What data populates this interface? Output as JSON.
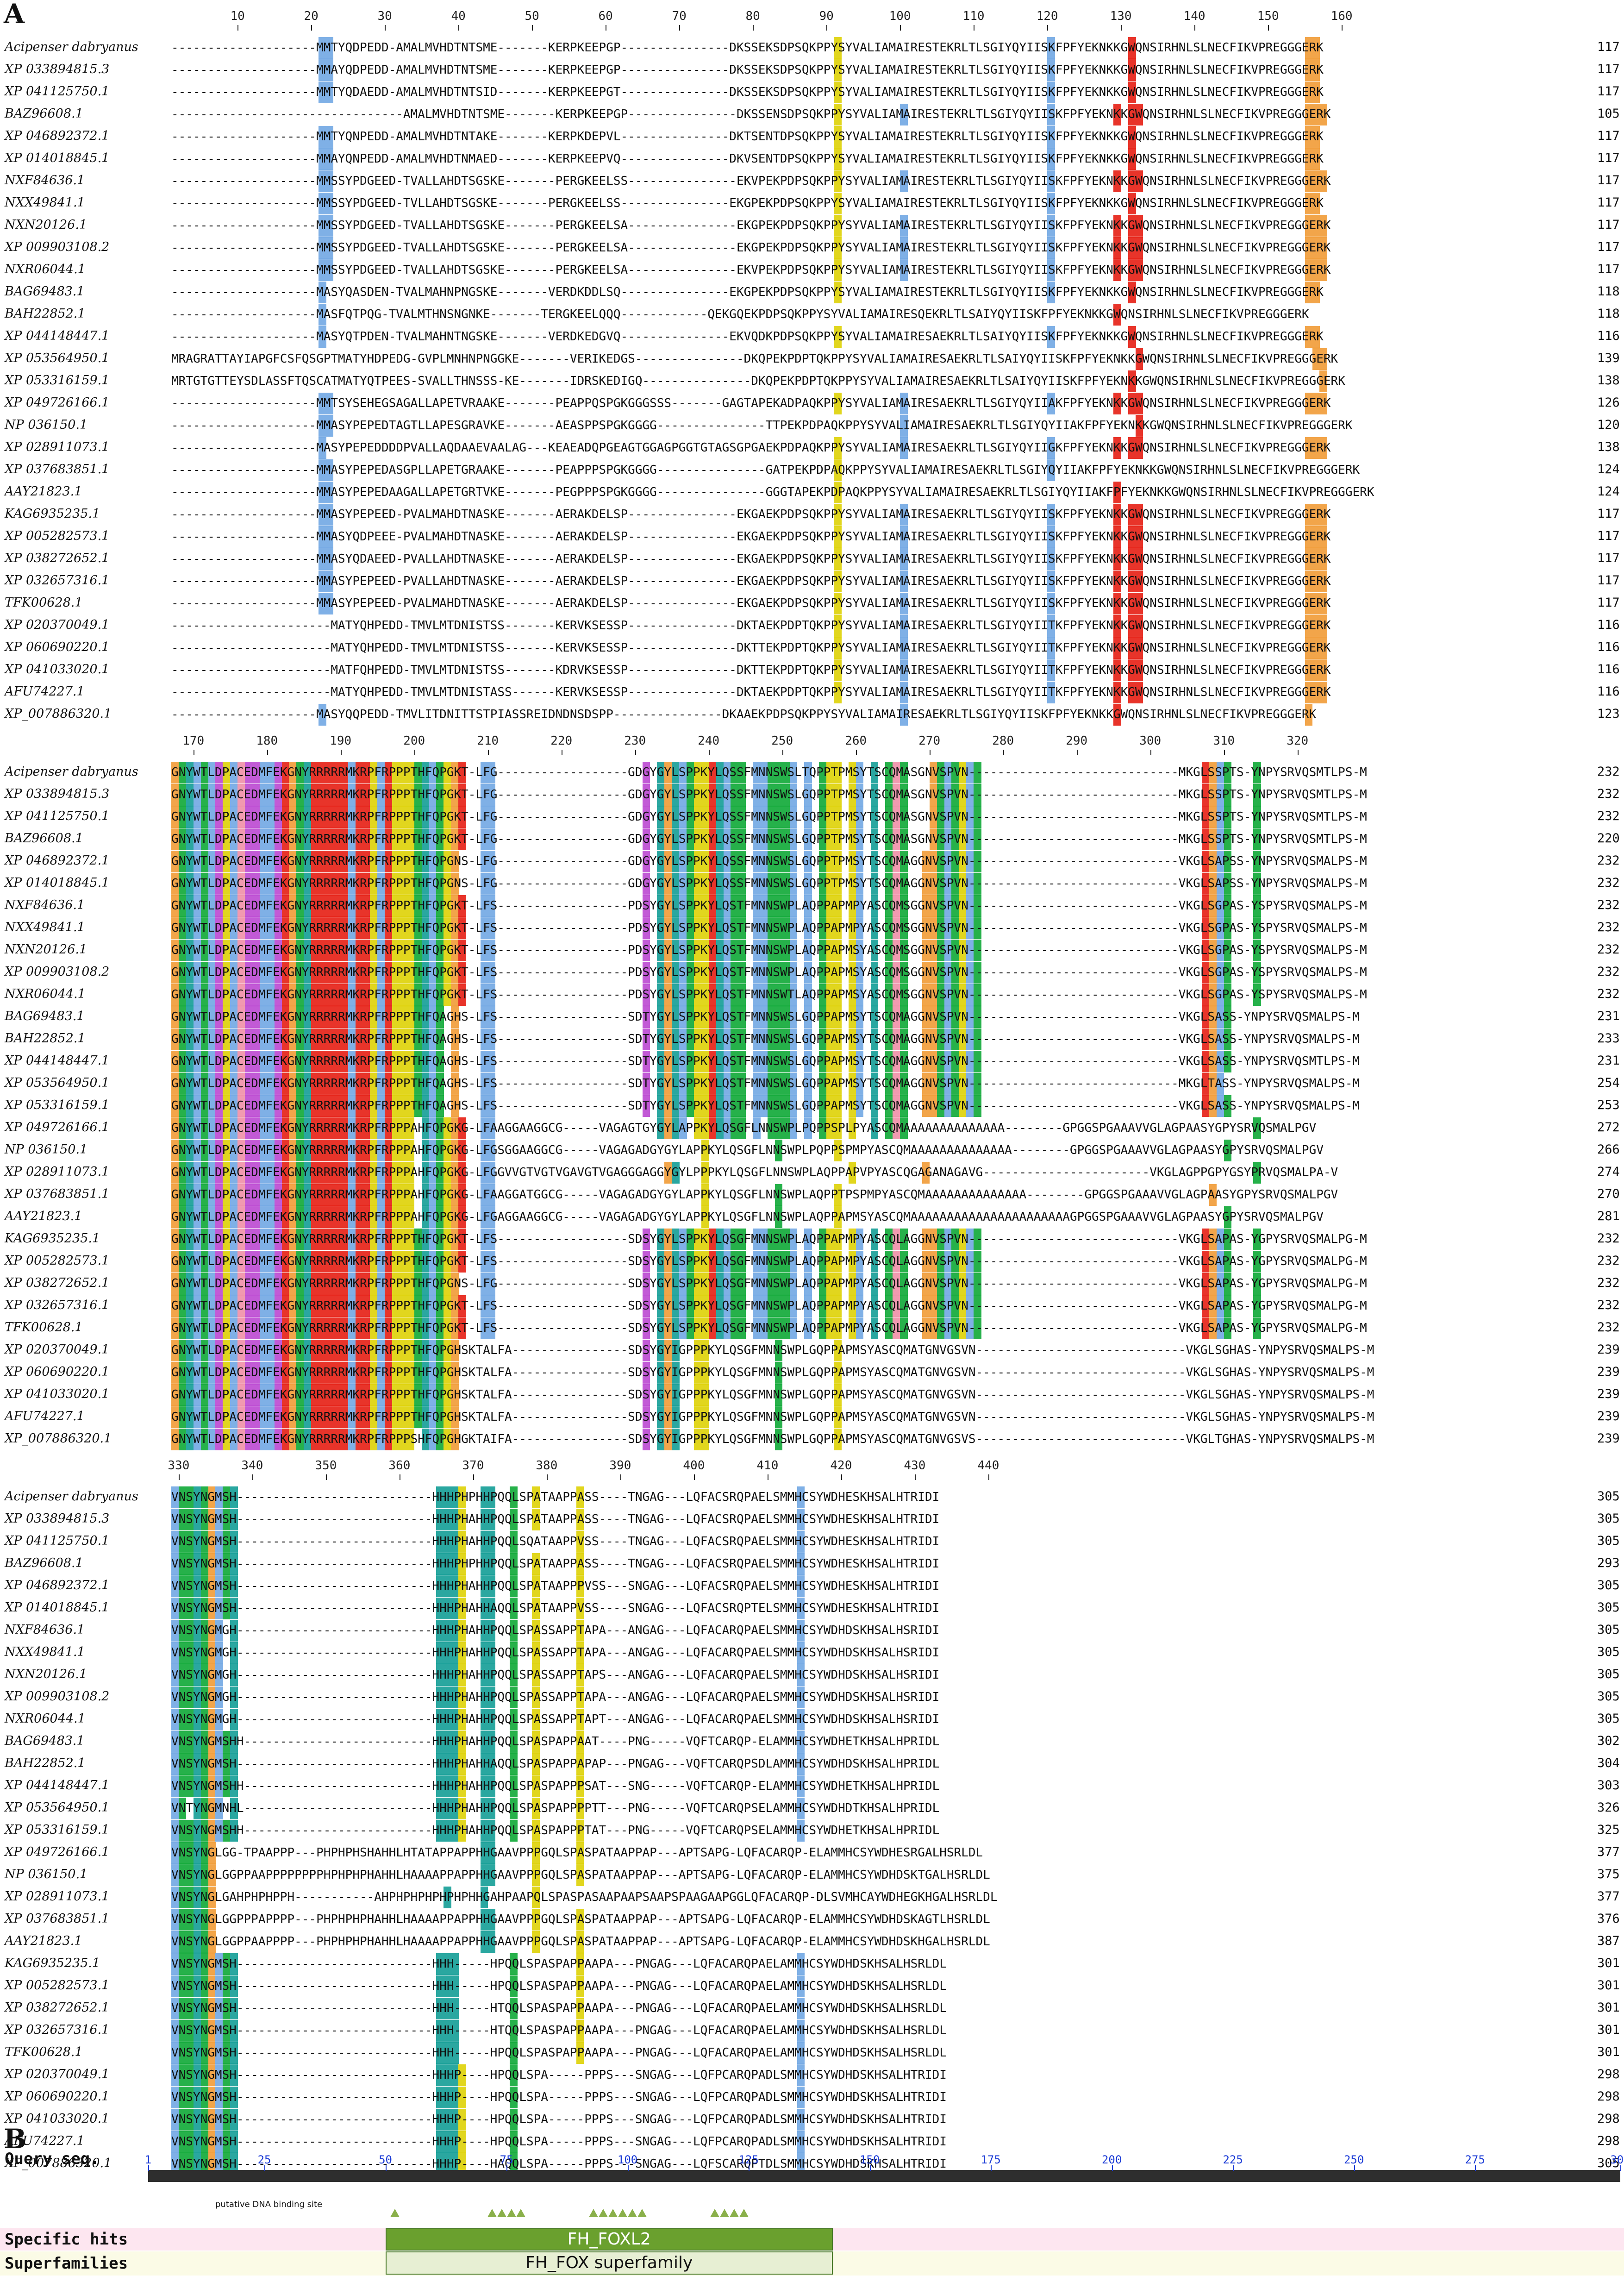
{
  "panel_a_label": "A",
  "panel_b_label": "B",
  "colors": {
    "blue": "#7fb0e6",
    "red": "#e8342a",
    "green": "#26b14a",
    "orange": "#f2a54a",
    "magenta": "#c25ad6",
    "yellow": "#e1d61e",
    "teal": "#2aa7a0",
    "pink": "#f19ab0",
    "lightgreen": "#9bd34c",
    "tan": "#c8a07a"
  },
  "names": [
    "Acipenser dabryanus",
    "XP 033894815.3",
    "XP 041125750.1",
    "BAZ96608.1",
    "XP 046892372.1",
    "XP 014018845.1",
    "NXF84636.1",
    "NXX49841.1",
    "NXN20126.1",
    "XP 009903108.2",
    "NXR06044.1",
    "BAG69483.1",
    "BAH22852.1",
    "XP 044148447.1",
    "XP 053564950.1",
    "XP 053316159.1",
    "XP 049726166.1",
    "NP 036150.1",
    "XP 028911073.1",
    "XP 037683851.1",
    "AAY21823.1",
    "KAG6935235.1",
    "XP 005282573.1",
    "XP 038272652.1",
    "XP 032657316.1",
    "TFK00628.1",
    "XP 020370049.1",
    "XP 060690220.1",
    "XP 041033020.1",
    "AFU74227.1",
    "XP_007886320.1"
  ],
  "block1": {
    "ruler": [
      "10",
      "20",
      "30",
      "40",
      "50",
      "60",
      "70",
      "80",
      "90",
      "100",
      "110",
      "120",
      "130",
      "140",
      "150",
      "160"
    ],
    "ends": [
      "117",
      "117",
      "117",
      "105",
      "117",
      "117",
      "117",
      "117",
      "117",
      "117",
      "117",
      "118",
      "118",
      "116",
      "139",
      "138",
      "126",
      "120",
      "138",
      "124",
      "124",
      "117",
      "117",
      "117",
      "117",
      "117",
      "116",
      "116",
      "116",
      "116",
      "123"
    ],
    "seqs": [
      "--------------------MMTYQDPEDD-AMALMVHDTNTSME-------KERPKEEPGP---------------DKSSEKSDPSQKPPYSYVALIAMAIRESTEKRLTLSGIYQYIISKFPFYEKNKKGWQNSIRHNLSLNECFIKVPREGGGERK",
      "--------------------MMAYQDPEDD-AMALMVHDTNTSME-------KERPKEEPGP---------------DKSSEKSDPSQKPPYSYVALIAMAIRESTEKRLTLSGIYQYIISKFPFYEKNKKGWQNSIRHNLSLNECFIKVPREGGGERK",
      "--------------------MMTYQDAEDD-AMALMVHDTNTSID-------KERPKEEPGT---------------DKSSEKSDPSQKPPYSYVALIAMAIRESTEKRLTLSGIYQYIISKFPFYEKNKKGWQNSIRHNLSLNECFIKVPREGGGERK",
      "--------------------------------AMALMVHDTNTSME-------KERPKEEPGP---------------DKSSENSDPSQKPPYSYVALIAMAIRESTEKRLTLSGIYQYIISKFPFYEKNKKGWQNSIRHNLSLNECFIKVPREGGGERK",
      "--------------------MMTYQNPEDD-AMALMVHDTNTAKE-------KERPKDEPVL---------------DKTSENTDPSQKPPYSYVALIAMAIRESTEKRLTLSGIYQYIISKFPFYEKNKKGWQNSIRHNLSLNECFIKVPREGGGERK",
      "--------------------MMAYQNPEDD-AMALMVHDTNMAED-------KERPKEEPVQ---------------DKVSENTDPSQKPPYSYVALIAMAIRESTEKRLTLSGIYQYIISKFPFYEKNKKGWQNSIRHNLSLNECFIKVPREGGGERK",
      "--------------------MMSSYPDGEED-TVALLAHDTSGSKE-------PERGKEELSS---------------EKVPEKPDPSQKPPYSYVALIAMAIRESTEKRLTLSGIYQYIISKFPFYEKNKKGWQNSIRHNLSLNECFIKVPREGGGERK",
      "--------------------MMSSYPDGEED-TVLLAHDTSGSKE-------PERGKEELSS---------------EKGPEKPDPSQKPPYSYVALIAMAIRESTEKRLTLSGIYQYIISKFPFYEKNKKGWQNSIRHNLSLNECFIKVPREGGGERK",
      "--------------------MMSSYPDGEED-TVALLAHDTSGSKE-------PERGKEELSA---------------EKGPEKPDPSQKPPYSYVALIAMAIRESTEKRLTLSGIYQYIISKFPFYEKNKKGWQNSIRHNLSLNECFIKVPREGGGERK",
      "--------------------MMSSYPDGEED-TVALLAHDTSGSKE-------PERGKEELSA---------------EKGPEKPDPSQKPPYSYVALIAMAIRESTEKRLTLSGIYQYIISKFPFYEKNKKGWQNSIRHNLSLNECFIKVPREGGGERK",
      "--------------------MMSSYPDGEED-TVALLAHDTSGSKE-------PERGKEELSA---------------EKVPEKPDPSQKPPYSYVALIAMAIRESTEKRLTLSGIYQYIISKFPFYEKNKKGWQNSIRHNLSLNECFIKVPREGGGERK",
      "--------------------MASYQASDEN-TVALMAHNPNGSKE-------VERDKDDLSQ---------------EKGPEKPDPSQKPPYSYVALIAMAIRESTEKRLTLSGIYQYIISKFPFYEKNKKGWQNSIRHNLSLNECFIKVPREGGGERK",
      "--------------------MASFQTPQG-TVALMTHNSNGNKE-------TERGKEELQQQ------------QEKGQEKPDPSQKPPYSYVALIAMAIRESQEKRLTLSAIYQYIISKFPFYEKNKKGWQNSIRHNLSLNECFIKVPREGGGERK",
      "--------------------MASYQTPDEN-TVALMAHNTNGSKE-------VERDKEDGVQ---------------EKVQDKPDPSQKPPYSYVALIAMAIRESAEKRLTLSAIYQYIISKFPFYEKNKKGWQNSIRHNLSLNECFIKVPREGGGERK",
      "MRAGRATTAYIAPGFCSFQSGPTMATYHDPEDG-GVPLMNHNPNGGKE-------VERIKEDGS---------------DKQPEKPDPTQKPPYSYVALIAMAIRESAEKRLTLSAIYQYIISKFPFYEKNKKGWQNSIRHNLSLNECFIKVPREGGGERK",
      "MRTGTGTTEYSDLASSFTQSCATMATYQTPEES-SVALLTHNSSS-KE-------IDRSKEDIGQ---------------DKQPEKPDPTQKPPYSYVALIAMAIRESAEKRLTLSAIYQYIISKFPFYEKNKKGWQNSIRHNLSLNECFIKVPREGGGERK",
      "--------------------MMTSYSEHEGSAGALLAPETVRAAKE-------PEAPPQSPGKGGGSSS-------GAGTAPEKADPAQKPPYSYVALIAMAIRESAEKRLTLSGIYQYIIAKFPFYEKNKKGWQNSIRHNLSLNECFIKVPREGGGERK",
      "--------------------MMASYPEPEDTAGTLLAPESGRAVKE-------AEASPPSPGKGGGG---------------TTPEKPDPAQKPPYSYVALIAMAIRESAEKRLTLSGIYQYIIAKFPFYEKNKKGWQNSIRHNLSLNECFIKVPREGGGERK",
      "--------------------MASYPEPEDDDDPVALLAQDAAEVAALAG---KEAEADQPGEAGTGGAGPGGTGTAGSGPGAEKPDPAQKPPYSYVALIAMAIRESAEKRLTLSGIYQYIIGKFPFYEKNKKGWQNSIRHNLSLNECFIKVPREGGGERK",
      "--------------------MMASYPEPEDASGPLLAPETGRAAKE-------PEAPPPSPGKGGGG---------------GATPEKPDPAQKPPYSYVALIAMAIRESAEKRLTLSGIYQYIIAKFPFYEKNKKGWQNSIRHNLSLNECFIKVPREGGGERK",
      "--------------------MMASYPEPEDAAGALLAPETGRTVKE-------PEGPPPSPGKGGGG---------------GGGTAPEKPDPAQKPPYSYVALIAMAIRESAEKRLTLSGIYQYIIAKFPFYEKNKKGWQNSIRHNLSLNECFIKVPREGGGERK",
      "--------------------MMASYPEPEED-PVALMAHDTNASKE-------AERAKDELSP---------------EKGAEKPDPSQKPPYSYVALIAMAIRESAEKRLTLSGIYQYIISKFPFYEKNKKGWQNSIRHNLSLNECFIKVPREGGGERK",
      "--------------------MMASYQDPEEE-PVALMAHDTNASKE-------AERAKDELSP---------------EKGAEKPDPSQKPPYSYVALIAMAIRESAEKRLTLSGIYQYIISKFPFYEKNKKGWQNSIRHNLSLNECFIKVPREGGGERK",
      "--------------------MMASYQDAEED-PVALLAHDTNASKE-------AERAKDELSP---------------EKGAEKPDPSQKPPYSYVALIAMAIRESAEKRLTLSGIYQYIISKFPFYEKNKKGWQNSIRHNLSLNECFIKVPREGGGERK",
      "--------------------MMASYPEPEED-PVALLAHDTNASKE-------AERAKDELSP---------------EKGAEKPDPSQKPPYSYVALIAMAIRESAEKRLTLSGIYQYIISKFPFYEKNKKGWQNSIRHNLSLNECFIKVPREGGGERK",
      "--------------------MMASYPEPEED-PVALMAHDTNASKE-------AERAKDELSP---------------EKGAEKPDPSQKPPYSYVALIAMAIRESAEKRLTLSGIYQYIISKFPFYEKNKKGWQNSIRHNLSLNECFIKVPREGGGERK",
      "----------------------MATYQHPEDD-TMVLMTDNISTSS-------KERVKSESSP---------------DKTAEKPDPTQKPPYSYVALIAMAIRESAEKRLTLSGIYQYIITKFPFYEKNKKGWQNSIRHNLSLNECFIKVPREGGGERK",
      "----------------------MATYQHPEDD-TMVLMTDNISTSS-------KERVKSESSP---------------DKTTEKPDPTQKPPYSYVALIAMAIRESAEKRLTLSGIYQYIITKFPFYEKNKKGWQNSIRHNLSLNECFIKVPREGGGERK",
      "----------------------MATFQHPEDD-TMVLMTDNISTSS-------KDRVKSESSP---------------DKTTEKPDPTQKPPYSYVALIAMAIRESAEKRLTLSGIYQYIITKFPFYEKNKKGWQNSIRHNLSLNECFIKVPREGGGERK",
      "----------------------MATYQHPEDD-TMVLMTDNISTASS------KERVKSESSP---------------DKTAEKPDPTQKPPYSYVALIAMAIRESAEKRLTLSGIYQYIITKFPFYEKNKKGWQNSIRHNLSLNECFIKVPREGGGERK",
      "--------------------MASYQQPEDD-TMVLITDNITTSTPIASSREIDNDNSDSPP---------------DKAAEKPDPSQKPPYSYVALIAMAIRESAEKRLTLSGIYQYIISKFPFYEKNKKGWQNSIRHNLSLNECFIKVPREGGGERK"
    ]
  },
  "block2": {
    "ruler": [
      "170",
      "180",
      "190",
      "200",
      "210",
      "220",
      "230",
      "240",
      "250",
      "260",
      "270",
      "280",
      "290",
      "300",
      "310",
      "320"
    ],
    "ends": [
      "232",
      "232",
      "232",
      "220",
      "232",
      "232",
      "232",
      "232",
      "232",
      "232",
      "232",
      "231",
      "233",
      "231",
      "254",
      "253",
      "272",
      "266",
      "274",
      "270",
      "281",
      "232",
      "232",
      "232",
      "232",
      "232",
      "239",
      "239",
      "239",
      "239",
      "239"
    ],
    "seqs": [
      "GNYWTLDPACEDMFEKGNYRRRRRMKRPFRPPPTHFQPGKT-LFG------------------GDGYGYLSPPKYLQSSFMNNSWSLTQPPTPMSYTSCQMASGNVSPVN-----------------------------MKGLSSPTS-YNPYSRVQSMTLPS-M",
      "GNYWTLDPACEDMFEKGNYRRRRRMKRPFRPPPTHFQPGKT-LFG------------------GDGYGYLSPPKYLQSSFMNNSWSLGQPPTPMSYTSCQMASGNVSPVN-----------------------------MKGLSSPTS-YNPYSRVQSMTLPS-M",
      "GNYWTLDPACEDMFEKGNYRRRRRMKRPFRPPPTHFQPGKT-LFG------------------GDGYGYLSPPKYLQSSFMNNSWSLGQPPTPMSYTSCQMASGNVSPVN-----------------------------MKGLSSPTS-YNPYSRVQSMTLPS-M",
      "GNYWTLDPACEDMFEKGNYRRRRRMKRPFRPPPTHFQPGKT-LFG------------------GDGYGYLSPPKYLQSSFMNNSWSLGQPPTPMSYTSCQMASGNVSPVN-----------------------------MKGLSSPTS-YNPYSRVQSMTLPS-M",
      "GNYWTLDPACEDMFEKGNYRRRRRMKRPFRPPPTHFQPGNS-LFG------------------GDGYGYLSPPKYLQSSFMNNSWSLGQPPTPMSYTSCQMAGGNVSPVN-----------------------------VKGLSAPSS-YNPYSRVQSMALPS-M",
      "GNYWTLDPACEDMFEKGNYRRRRRMKRPFRPPPTHFQPGNS-LFG------------------GDGYGYLSPPKYLQSSFMNNSWSLGQPPTPMSYTSCQMAGGNVSPVN-----------------------------VKGLSAPSS-YNPYSRVQSMALPS-M",
      "GNYWTLDPACEDMFEKGNYRRRRRMKRPFRPPPTHFQPGKT-LFS------------------PDSYGYLSPPKYLQSTFMNNSWPLAQPPAPMPYASCQMSGGNVSPVN-----------------------------VKGLSGPAS-YSPYSRVQSMALPS-M",
      "GNYWTLDPACEDMFEKGNYRRRRRMKRPFRPPPTHFQPGKT-LFS------------------PDSYGYLSPPKYLQSTFMNNSWPLAQPPAPMPYASCQMSGGNVSPVN-----------------------------VKGLSGPAS-YSPYSRVQSMALPS-M",
      "GNYWTLDPACEDMFEKGNYRRRRRMKRPFRPPPTHFQPGKT-LFS------------------PDSYGYLSPPKYLQSTFMNNSWPLAQPPAPMSYASCQMSGGNVSPVN-----------------------------VKGLSGPAS-YSPYSRVQSMALPS-M",
      "GNYWTLDPACEDMFEKGNYRRRRRMKRPFRPPPTHFQPGKT-LFS------------------PDSYGYLSPPKYLQSTFMNNSWPLAQPPAPMSYASCQMSGGNVSPVN-----------------------------VKGLSGPAS-YSPYSRVQSMALPS-M",
      "GNYWTLDPACEDMFEKGNYRRRRRMKRPFRPPPTHFQPGKT-LFS------------------PDSYGYLSPPKYLQSTFMNNSWTLAQPPAPMSYASCQMSGGNVSPVN-----------------------------VKGLSGPAS-YSPYSRVQSMALPS-M",
      "GNYWTLDPACEDMFEKGNYRRRRRMKRPFRPPPTHFQAGHS-LFS------------------SDTYGYLSPPKYLQSTFMNNSWSLGQPPAPMSYTSCQMAGGNVSPVN-----------------------------VKGLSASS-YNPYSRVQSMALPS-M",
      "GNYWTLDPACEDMFEKGNYRRRRRMKRPFRPPPTHFQAGHS-LFS------------------SDTYGYLSPPKYLQSTFMNNSWSLGQPPAPMSYTSCQMAGGNVSPVN-----------------------------VKGLSASS-YNPYSRVQSMALPS-M",
      "GNYWTLDPACEDMFEKGNYRRRRRMKRPFRPPPTHFQAGHS-LFS------------------SDTYGYLSPPKYLQSTFMNNSWSLGQPPAPMSYTSCQMAGGNVSPVN-----------------------------VKGLSASS-YNPYSRVQSMTLPS-M",
      "GNYWTLDPACEDMFEKGNYRRRRRMKRPFRPPPTHFQAGHS-LFS------------------SDTYGYLSPPKYLQSTFMNNSWSLGQPPAPMSYTSCQMAGGNVSPVN-----------------------------MKGLTASS-YNPYSRVQSMALPS-M",
      "GNYWTLDPACEDMFEKGNYRRRRRMKRPFRPPPTHFQAGHS-LFS------------------SDTYGYLSPPKYLQSTFMNNSWSLGQPPAPMSYTSCQMAGGNVSPVN-----------------------------VKGLSASS-YNPYSRVQSMALPS-M",
      "GNYWTLDPACEDMFEKGNYRRRRRMKRPFRPPPAHFQPGKG-LFAAGGAAGGCG-----VAGAGTGYGYLAPPKYLQSGFLNNSWPLPQPPSPLPYASCQMAAAAAAAAAAAAAA--------GPGGSPGAAAVVGLAGPAASYGPYSRVQSMALPGV",
      "GNYWTLDPACEDMFEKGNYRRRRRMKRPFRPPPAHFQPGKG-LFGSGGAAGGCG-----VAGAGADGYGYLAPPKYLQSGFLNNSWPLPQPPSPMPYASCQMAAAAAAAAAAAAAA--------GPGGSPGAAAVVGLAGPAASYGPYSRVQSMALPGV",
      "GNYWTLDPACEDMFEKGNYRRRRRMKRPFRPPPAHFQPGKG-LFGGVVGTVGTVGAVGTVGAGGGAGGYGYLPPPKYLQSGFLNNSWPLAQPPAPVPYASCQGAGANAGAVG-----------------------VKGLAGPPGPYGSYPRVQSMALPA-V",
      "GNYWTLDPACEDMFEKGNYRRRRRMKRPFRPPPAHFQPGKG-LFAAGGATGGCG-----VAGAGADGYGYLAPPKYLQSGFLNNSWPLAQPPTPSPMPYASCQMAAAAAAAAAAAAAA--------GPGGSPGAAAVVGLAGPAASYGPYSRVQSMALPGV",
      "GNYWTLDPACEDMFEKGNYRRRRRMKRPFRPPPAHFQPGKG-LFGAGGAAGGCG-----VAGAGADGYGYLAPPKYLQSGFLNNSWPLAQPPAPMSYASCQMAAAAAAAAAAAAAAAAAAAAAAGPGGSPGAAAVVGLAGPAASYGPYSRVQSMALPGV",
      "GNYWTLDPACEDMFEKGNYRRRRRMKRPFRPPPTHFQPGKT-LFS------------------SDSYGYLSPPKYLQSGFMNNSWPLAQPPAPMPYASCQLAGGNVSPVN-----------------------------VKGLSAPAS-YGPYSRVQSMALPG-M",
      "GNYWTLDPACEDMFEKGNYRRRRRMKRPFRPPPTHFQPGKT-LFS------------------SDSYGYLSPPKYLQSGFMNNSWPLAQPPAPMPYASCQLAGGNVSPVN-----------------------------VKGLSAPAS-YGPYSRVQSMALPG-M",
      "GNYWTLDPACEDMFEKGNYRRRRRMKRPFRPPPTHFQPGNS-LFG------------------SDSYGYLSPPKYLQSGFMNNSWPLAQPPAPMPYASCQLAGGNVSPVN-----------------------------VKGLSAPAS-YGPYSRVQSMALPG-M",
      "GNYWTLDPACEDMFEKGNYRRRRRMKRPFRPPPTHFQPGKT-LFS------------------SDSYGYLSPPKYLQSGFMNNSWPLAQPPAPMPYASCQLAGGNVSPVN-----------------------------VKGLSAPAS-YGPYSRVQSMALPG-M",
      "GNYWTLDPACEDMFEKGNYRRRRRMKRPFRPPPTHFQPGKT-LFS------------------SDSYGYLSPPKYLQSGFMNNSWPLAQPPAPMPYASCQLAGGNVSPVN-----------------------------VKGLSAPAS-YGPYSRVQSMALPG-M",
      "GNYWTLDPACEDMFEKGNYRRRRRMKRPFRPPPTHFQPGHSKTALFA----------------SDSYGYIGPPPKYLQSGFMNNSWPLGQPPAPMSYASCQMATGNVGSVN-----------------------------VKGLSGHAS-YNPYSRVQSMALPS-M",
      "GNYWTLDPACEDMFEKGNYRRRRRMKRPFRPPPTHFQPGHSKTALFA----------------SDSYGYIGPPPKYLQSGFMNNSWPLGQPPAPMSYASCQMATGNVGSVN-----------------------------VKGLSGHAS-YNPYSRVQSMALPS-M",
      "GNYWTLDPACEDMFEKGNYRRRRRMKRPFRPPPTHFQPGHSKTALFA----------------SDSYGYIGPPPKYLQSGFMNNSWPLGQPPAPMSYASCQMATGNVGSVN-----------------------------VKGLSGHAS-YNPYSRVQSMALPS-M",
      "GNYWTLDPACEDMFEKGNYRRRRRMKRPFRPPPTHFQPGHSKTALFA----------------SDSYGYIGPPPKYLQSGFMNNSWPLGQPPAPMSYASCQMATGNVGSVN-----------------------------VKGLSGHAS-YNPYSRVQSMALPS-M",
      "GNYWTLDPACEDMFEKGNYRRRRRMKRPFRPPPSHFQPGHGKTAIFA----------------SDSYGYIGPPPKYLQSGFMNNSWPLGQPPAPMSYASCQMATGNVGSVS-----------------------------VKGLTGHAS-YNPYSRVQSMALPS-M"
    ]
  },
  "block3": {
    "ruler": [
      "330",
      "340",
      "350",
      "360",
      "370",
      "380",
      "390",
      "400",
      "410",
      "420",
      "430",
      "440"
    ],
    "ends": [
      "305",
      "305",
      "305",
      "293",
      "305",
      "305",
      "305",
      "305",
      "305",
      "305",
      "305",
      "302",
      "304",
      "303",
      "326",
      "325",
      "377",
      "375",
      "377",
      "376",
      "387",
      "301",
      "301",
      "301",
      "301",
      "301",
      "298",
      "298",
      "298",
      "298",
      "305"
    ],
    "seqs": [
      "VNSYNGMSH---------------------------HHHPHPHHPQQLSPATAAPPASS----TNGAG---LQFACSRQPAELSMMHCSYWDHESKHSALHTRIDI",
      "VNSYNGMSH---------------------------HHHPHAHHPQQLSPATAAPPASS----TNGAG---LQFACSRQPAELSMMHCSYWDHESKHSALHTRIDI",
      "VNSYNGMSH---------------------------HHHPHAHHPQQLSQATAAPPVSS----TNGAG---LQFACSRQPAELSMMHCSYWDHESKHSALHTRIDI",
      "VNSYNGMSH---------------------------HHHPHPHHPQQLSPATAAPPASS----TNGAG---LQFACSRQPAELSMMHCSYWDHESKHSALHTRIDI",
      "VNSYNGMSH---------------------------HHHPHAHHPQQLSPATAAPPPVSS---SNGAG---LQFACSRQPAELSMMHCSYWDHESKHSALHTRIDI",
      "VNSYNGMSH---------------------------HHHPHAHHAQQLSPATAAPPVSS----SNGAG---LQFACSRQPTELSMMHCSYWDHESKHSALHTRIDI",
      "VNSYNGMGH---------------------------HHHPHAHHPQQLSPASSAPPTAPA---ANGAG---LQFACARQPAELSMMHCSYWDHDSKHSALHSRIDI",
      "VNSYNGMGH---------------------------HHHPHAHHPQQLSPASSAPPTAPA---ANGAG---LQFACARQPAELSMMHCSYWDHDSKHSALHSRIDI",
      "VNSYNGMGH---------------------------HHHPHAHHPQQLSPASSAPPTAPS---ANGAG---LQFACARQPAELSMMHCSYWDHDSKHSALHSRIDI",
      "VNSYNGMGH---------------------------HHHPHAHHPQQLSPASSAPPTAPA---ANGAG---LQFACARQPAELSMMHCSYWDHDSKHSALHSRIDI",
      "VNSYNGMGH---------------------------HHHPHAHHPQQLSPASSAPPTAPT---ANGAG---LQFACARQPAELSMMHCSYWDHDSKHSALHSRIDI",
      "VNSYNGMSHH--------------------------HHHPHAHHPQQLSPASPAPPAAT----PNG-----VQFTCARQP-ELAMMHCSYWDHETKHSALHPRIDL",
      "VNSYNGMSH---------------------------HHHPHAHHAQQLSPASPAPPAPAP---PNGAG---VQFTCARQPSDLAMMHCSYWDHDSKHSALHPRIDL",
      "VNSYNGMSHH--------------------------HHHPHAHHPQQLSPASPAPPPSAT---SNG-----VQFTCARQP-ELAMMHCSYWDHETKHSALHPRIDL",
      "VNTYNGMNHL--------------------------HHHPHAHHPQQLSPASPAPPPPTT---PNG-----VQFTCARQPSELAMMHCSYWDHDTKHSALHPRIDL",
      "VNSYNGMSHH--------------------------HHHPHAHHPQQLSPASPAPPPTAT---PNG-----VQFTCARQPSELAMMHCSYWDHETKHSALHPRIDL",
      "VNSYNGLGG-TPAAPPP---PHPHPHSHAHHLHTATAPPAPPHHGAAVPPPGQLSPASPATAAPPAP---APTSAPG-LQFACARQP-ELAMMHCSYWDHESRGALHSRLDL",
      "VNSYNGLGGPPAAPPPPPPPPHPHPHPHAHHLHAAAAPPAPPHHGAAVPPPGQLSPASPATAAPPAP---APTSAPG-LQFACARQP-ELAMMHCSYWDHDSKTGALHSRLDL",
      "VNSYNGLGAHPHPHPPH-----------AHPHPHPHPHPHPHHGAHPAAPQLSPASPASAAPAAPSAAPSPAAGAAPGGLQFACARQP-DLSVMHCAYWDHEGKHGALHSRLDL",
      "VNSYNGLGGPPPAPPPP---PHPHPHPHAHHLHAAAAPPAPPHHGAAVPPPGQLSPASPATAAPPAP---APTSAPG-LQFACARQP-ELAMMHCSYWDHDSKAGTLHSRLDL",
      "VNSYNGLGGPPAAPPPP---PHPHPHPHAHHLHAAAAPPAPPHHGAAVPPPGQLSPASPATAAPPAP---APTSAPG-LQFACARQP-ELAMMHCSYWDHDSKHGALHSRLDL",
      "VNSYNGMSH---------------------------HHH-----HPQQLSPASPAPPAAPA---PNGAG---LQFACARQPAELAMMHCSYWDHDSKHSALHSRLDL",
      "VNSYNGMSH---------------------------HHH-----HPQQLSPASPAPPAAPA---PNGAG---LQFACARQPAELAMMHCSYWDHDSKHSALHSRLDL",
      "VNSYNGMSH---------------------------HHH-----HTQQLSPASPAPPAAPA---PNGAG---LQFACARQPAELAMMHCSYWDHDSKHSALHSRLDL",
      "VNSYNGMSH---------------------------HHH-----HTQQLSPASPAPPAAPA---PNGAG---LQFACARQPAELAMMHCSYWDHDSKHSALHSRLDL",
      "VNSYNGMSH---------------------------HHH-----HPQQLSPASPAPPAAPA---PNGAG---LQFACARQPAELAMMHCSYWDHDSKHSALHSRLDL",
      "VNSYNGMSH---------------------------HHHP----HPQQLSPA-----PPPS---SNGAG---LQFPCARQPADLSMMHCSYWDHDSKHSALHTRIDI",
      "VNSYNGMSH---------------------------HHHP----HPQQLSPA-----PPPS---SNGAG---LQFPCARQPADLSMMHCSYWDHDSKHSALHTRIDI",
      "VNSYNGMSH---------------------------HHHP----HPQQLSPA-----PPPS---SNGAG---LQFPCARQPADLSMMHCSYWDHDSKHSALHTRIDI",
      "VNSYNGMSH---------------------------HHHP----HPQQLSPA-----PPPS---SNGAG---LQFPCARQPADLSMMHCSYWDHDSKHSALHTRIDI",
      "VNSYNGMSH---------------------------HHHP----HAQQLSPA-----PPPS---SNGAG---LQFSCARQPTDLSMMHCSYWDHDSKHSALHTRIDI"
    ]
  },
  "panel_b": {
    "query_label": "Query seq.",
    "specific_label": "Specific hits",
    "super_label": "Superfamilies",
    "binding_site_label": "putative DNA binding site",
    "specific_hit": "FH_FOXL2",
    "superfamily_hit": "FH_FOX superfamily",
    "ticks": [
      "1",
      "25",
      "50",
      "75",
      "100",
      "125",
      "150",
      "175",
      "200",
      "225",
      "250",
      "275",
      "305"
    ],
    "query_length": 305,
    "hit_range": [
      50,
      142
    ],
    "binding_sites": [
      52,
      72,
      74,
      76,
      78,
      93,
      95,
      97,
      99,
      101,
      103,
      118,
      120,
      122,
      124
    ]
  }
}
